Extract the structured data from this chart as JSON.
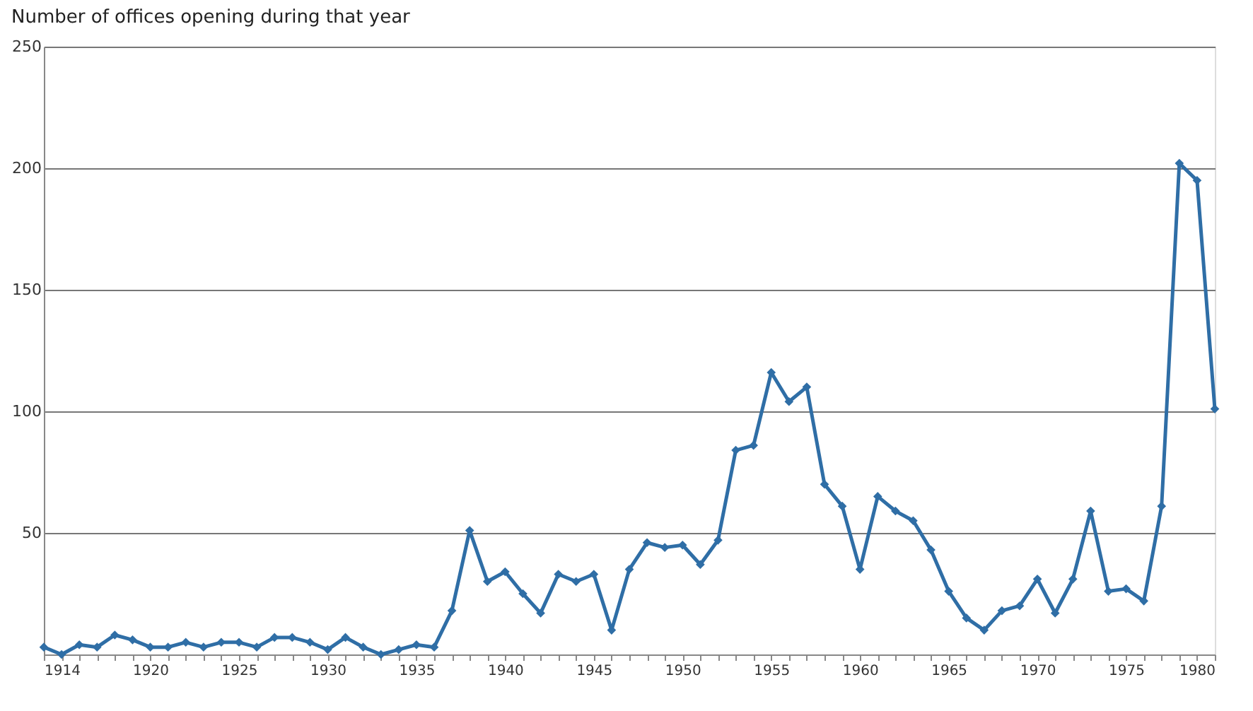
{
  "chart_data": {
    "type": "line",
    "title": "Number of offices opening during that year",
    "x": [
      1914,
      1915,
      1916,
      1917,
      1918,
      1919,
      1920,
      1921,
      1922,
      1923,
      1924,
      1925,
      1926,
      1927,
      1928,
      1929,
      1930,
      1931,
      1932,
      1933,
      1934,
      1935,
      1936,
      1937,
      1938,
      1939,
      1940,
      1941,
      1942,
      1943,
      1944,
      1945,
      1946,
      1947,
      1948,
      1949,
      1950,
      1951,
      1952,
      1953,
      1954,
      1955,
      1956,
      1957,
      1958,
      1959,
      1960,
      1961,
      1962,
      1963,
      1964,
      1965,
      1966,
      1967,
      1968,
      1969,
      1970,
      1971,
      1972,
      1973,
      1974,
      1975,
      1976,
      1977,
      1978,
      1979,
      1980
    ],
    "series": [
      {
        "color": "#2f6ea6",
        "values": [
          3,
          0,
          4,
          3,
          8,
          6,
          3,
          3,
          5,
          3,
          5,
          5,
          3,
          7,
          7,
          5,
          2,
          7,
          3,
          0,
          2,
          4,
          3,
          18,
          51,
          30,
          34,
          25,
          17,
          33,
          30,
          33,
          10,
          35,
          46,
          44,
          45,
          37,
          47,
          84,
          86,
          116,
          104,
          110,
          70,
          61,
          35,
          65,
          59,
          55,
          43,
          26,
          15,
          10,
          18,
          20,
          31,
          17,
          31,
          59,
          26,
          27,
          22,
          61,
          202,
          195,
          101
        ]
      }
    ],
    "xlim": [
      1914,
      1980
    ],
    "ylim": [
      0,
      250
    ],
    "xticks": [
      1914,
      {
        "value": 1915,
        "label": null
      },
      {
        "value": 1916,
        "label": null
      },
      {
        "value": 1917,
        "label": null
      },
      {
        "value": 1918,
        "label": null
      },
      {
        "value": 1919,
        "label": null
      },
      1920,
      {
        "value": 1921,
        "label": null
      },
      {
        "value": 1922,
        "label": null
      },
      {
        "value": 1923,
        "label": null
      },
      {
        "value": 1924,
        "label": null
      },
      1925,
      {
        "value": 1926,
        "label": null
      },
      {
        "value": 1927,
        "label": null
      },
      {
        "value": 1928,
        "label": null
      },
      {
        "value": 1929,
        "label": null
      },
      1930,
      {
        "value": 1931,
        "label": null
      },
      {
        "value": 1932,
        "label": null
      },
      {
        "value": 1933,
        "label": null
      },
      {
        "value": 1934,
        "label": null
      },
      1935,
      {
        "value": 1936,
        "label": null
      },
      {
        "value": 1937,
        "label": null
      },
      {
        "value": 1938,
        "label": null
      },
      {
        "value": 1939,
        "label": null
      },
      1940,
      {
        "value": 1941,
        "label": null
      },
      {
        "value": 1942,
        "label": null
      },
      {
        "value": 1943,
        "label": null
      },
      {
        "value": 1944,
        "label": null
      },
      1945,
      {
        "value": 1946,
        "label": null
      },
      {
        "value": 1947,
        "label": null
      },
      {
        "value": 1948,
        "label": null
      },
      {
        "value": 1949,
        "label": null
      },
      1950,
      {
        "value": 1951,
        "label": null
      },
      {
        "value": 1952,
        "label": null
      },
      {
        "value": 1953,
        "label": null
      },
      {
        "value": 1954,
        "label": null
      },
      1955,
      {
        "value": 1956,
        "label": null
      },
      {
        "value": 1957,
        "label": null
      },
      {
        "value": 1958,
        "label": null
      },
      {
        "value": 1959,
        "label": null
      },
      1960,
      {
        "value": 1961,
        "label": null
      },
      {
        "value": 1962,
        "label": null
      },
      {
        "value": 1963,
        "label": null
      },
      {
        "value": 1964,
        "label": null
      },
      1965,
      {
        "value": 1966,
        "label": null
      },
      {
        "value": 1967,
        "label": null
      },
      {
        "value": 1968,
        "label": null
      },
      {
        "value": 1969,
        "label": null
      },
      1970,
      {
        "value": 1971,
        "label": null
      },
      {
        "value": 1972,
        "label": null
      },
      {
        "value": 1973,
        "label": null
      },
      {
        "value": 1974,
        "label": null
      },
      1975,
      {
        "value": 1976,
        "label": null
      },
      {
        "value": 1977,
        "label": null
      },
      {
        "value": 1978,
        "label": null
      },
      {
        "value": 1979,
        "label": null
      },
      1980
    ],
    "yticks": [
      {
        "value": 0,
        "label": null
      },
      50,
      100,
      150,
      200,
      250
    ],
    "grid": "y",
    "marker": "diamond",
    "line_style": "solid"
  }
}
